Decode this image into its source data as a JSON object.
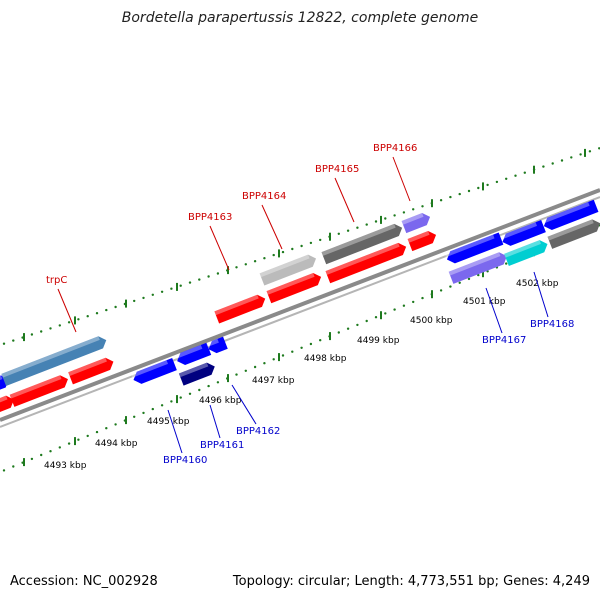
{
  "title": "Bordetella parapertussis 12822, complete genome",
  "footer": {
    "accession": "Accession: NC_002928",
    "summary": "Topology: circular; Length: 4,773,551 bp; Genes: 4,249"
  },
  "colors": {
    "background": "#ffffff",
    "backbone": "#8a8a8a",
    "tick": "#1e7a1e",
    "forward_label": "#cc0000",
    "reverse_label": "#0000cc",
    "cds_red": "#ff0000",
    "cds_blue": "#0000ff",
    "cds_gray": "#666666",
    "cds_light": "#bbbbbb",
    "cds_purple": "#7b68ee",
    "cds_cyan": "#00ced1",
    "cds_steel": "#4682b4",
    "cds_navy": "#000080"
  },
  "kbp_labels": [
    "4493 kbp",
    "4494 kbp",
    "4495 kbp",
    "4496 kbp",
    "4497 kbp",
    "4498 kbp",
    "4499 kbp",
    "4500 kbp",
    "4501 kbp",
    "4502 kbp"
  ],
  "forward_gene_labels": [
    "trpC",
    "BPP4163",
    "BPP4164",
    "BPP4165",
    "BPP4166"
  ],
  "reverse_gene_labels": [
    "BPP4160",
    "BPP4161",
    "BPP4162",
    "BPP4167",
    "BPP4168"
  ]
}
